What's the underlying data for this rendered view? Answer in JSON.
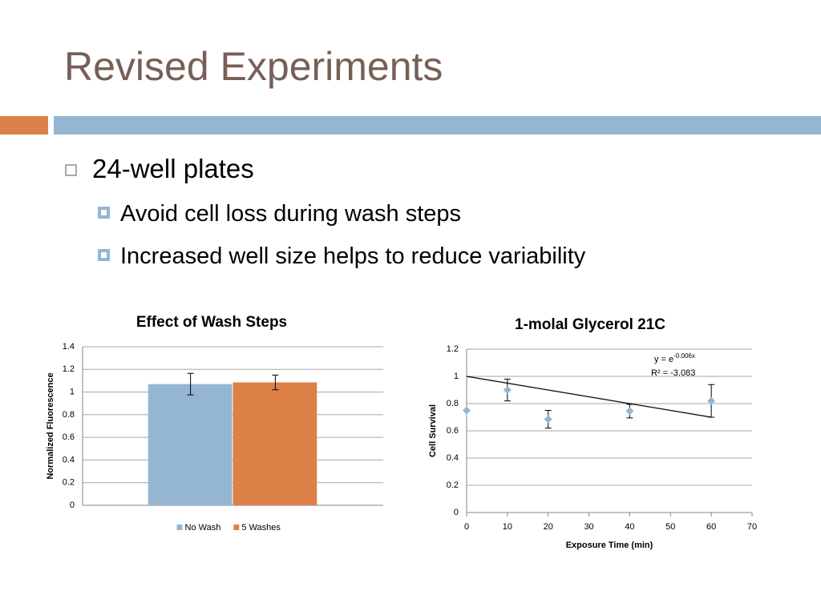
{
  "title": "Revised Experiments",
  "bullets": [
    {
      "text": "24-well plates",
      "children": [
        "Avoid cell loss during wash steps",
        "Increased well size helps to reduce variability"
      ]
    }
  ],
  "chart_data": [
    {
      "type": "bar",
      "title": "Effect of Wash Steps",
      "ylabel": "Normalized Fluorescence",
      "categories": [
        null
      ],
      "series": [
        {
          "name": "No Wash",
          "color": "#94b6d2",
          "values": [
            1.07
          ],
          "errors": [
            0.095
          ]
        },
        {
          "name": "5 Washes",
          "color": "#dd8047",
          "values": [
            1.085
          ],
          "errors": [
            0.065
          ]
        }
      ],
      "ylim": [
        0,
        1.4
      ],
      "yticks": [
        0,
        0.2,
        0.4,
        0.6,
        0.8,
        1,
        1.2,
        1.4
      ],
      "grid": true,
      "legend": "bottom"
    },
    {
      "type": "scatter",
      "title": "1-molal Glycerol 21C",
      "xlabel": "Exposure Time (min)",
      "ylabel": "Cell Survival",
      "x": [
        0,
        10,
        20,
        40,
        60
      ],
      "values": [
        0.75,
        0.9,
        0.685,
        0.745,
        0.82
      ],
      "errors": [
        null,
        0.08,
        0.065,
        0.05,
        0.12
      ],
      "color": "#94b6d2",
      "trendline": {
        "x": [
          0,
          60
        ],
        "values": [
          1,
          0.7
        ],
        "color": "#000000",
        "label": "y = e",
        "label_exponent": "-0.006x",
        "r2_label": "R² = -3.083"
      },
      "xlim": [
        0,
        70
      ],
      "xticks": [
        0,
        10,
        20,
        30,
        40,
        50,
        60,
        70
      ],
      "ylim": [
        0,
        1.2
      ],
      "yticks": [
        0,
        0.2,
        0.4,
        0.6,
        0.8,
        1,
        1.2
      ],
      "grid": true
    }
  ]
}
